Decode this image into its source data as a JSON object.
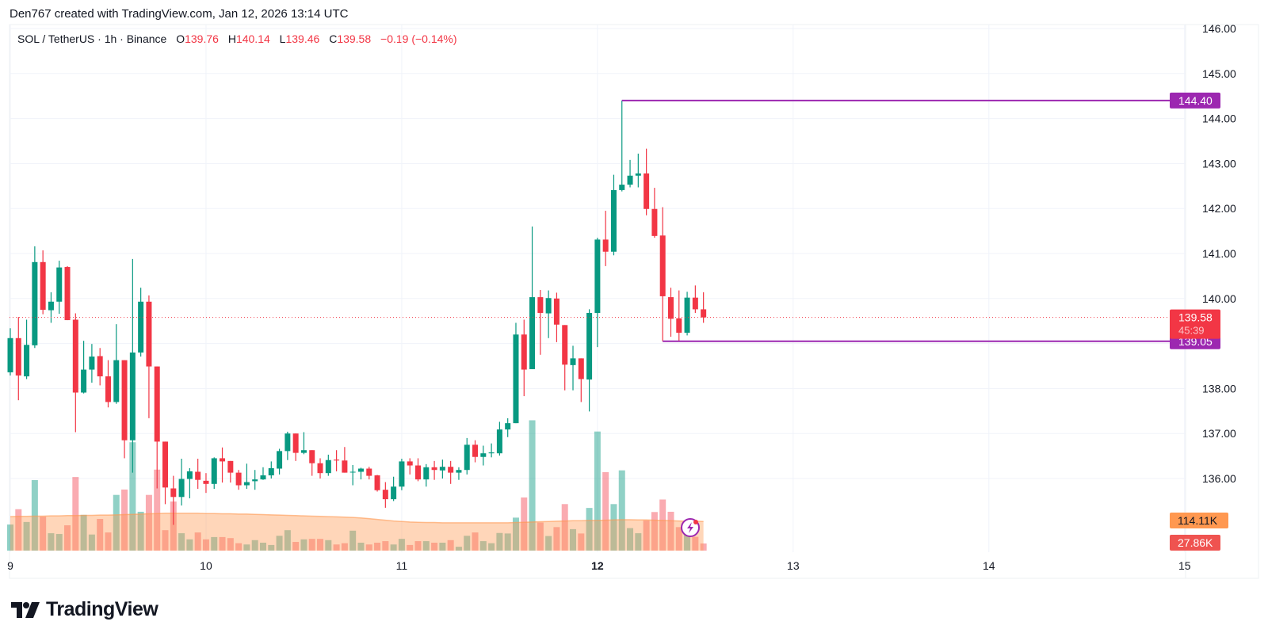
{
  "header": {
    "attribution": "Den767 created with TradingView.com, Jan 12, 2026 13:14 UTC"
  },
  "legend": {
    "symbol": "SOL / TetherUS · 1h · Binance",
    "o_label": "O",
    "o_value": "139.76",
    "h_label": "H",
    "h_value": "140.14",
    "l_label": "L",
    "l_value": "139.46",
    "c_label": "C",
    "c_value": "139.58",
    "change": "−0.19 (−0.14%)"
  },
  "logo": {
    "text": "TradingView"
  },
  "colors": {
    "up": "#089981",
    "down": "#f23645",
    "hline": "#9c27b0",
    "volume_ma": "#ff9850",
    "volume_label": "#ef5350",
    "grid": "#f0f3fa"
  },
  "chart_data": {
    "type": "candlestick",
    "interval": "1h",
    "ylim": [
      135,
      146
    ],
    "grid": true,
    "x_ticks": [
      "9",
      "10",
      "11",
      "12",
      "13",
      "14",
      "15"
    ],
    "x_tick_bold": "12",
    "y_ticks": [
      "146.00",
      "145.00",
      "144.00",
      "143.00",
      "142.00",
      "141.00",
      "140.00",
      "138.00",
      "137.00",
      "136.00"
    ],
    "candles": [
      [
        138.36,
        139.34,
        138.29,
        139.12
      ],
      [
        139.12,
        139.59,
        137.74,
        138.29
      ],
      [
        138.27,
        139.53,
        138.21,
        138.97
      ],
      [
        138.96,
        141.16,
        138.9,
        140.81
      ],
      [
        140.81,
        141.07,
        139.65,
        139.75
      ],
      [
        139.74,
        140.14,
        139.46,
        139.93
      ],
      [
        139.93,
        140.84,
        139.66,
        140.69
      ],
      [
        140.7,
        140.72,
        139.52,
        139.52
      ],
      [
        139.53,
        139.67,
        137.03,
        137.91
      ],
      [
        137.91,
        139.06,
        137.89,
        138.42
      ],
      [
        138.42,
        138.99,
        138.13,
        138.71
      ],
      [
        138.72,
        138.9,
        138.07,
        138.27
      ],
      [
        138.27,
        138.63,
        137.58,
        137.7
      ],
      [
        137.7,
        139.43,
        137.66,
        138.63
      ],
      [
        138.63,
        138.63,
        136.45,
        136.85
      ],
      [
        136.85,
        140.88,
        136.13,
        138.8
      ],
      [
        138.8,
        140.24,
        138.71,
        139.93
      ],
      [
        139.93,
        140.07,
        137.34,
        138.49
      ],
      [
        138.49,
        138.49,
        135.78,
        136.82
      ],
      [
        136.82,
        136.82,
        135.43,
        135.8
      ],
      [
        135.78,
        136.06,
        134.97,
        135.59
      ],
      [
        135.59,
        136.44,
        135.4,
        135.99
      ],
      [
        135.99,
        136.23,
        135.56,
        136.16
      ],
      [
        136.15,
        136.44,
        135.77,
        135.97
      ],
      [
        135.95,
        136.12,
        135.68,
        135.88
      ],
      [
        135.88,
        136.47,
        135.77,
        136.45
      ],
      [
        136.45,
        136.69,
        135.91,
        136.38
      ],
      [
        136.39,
        136.39,
        135.91,
        136.13
      ],
      [
        136.13,
        136.19,
        135.75,
        135.85
      ],
      [
        135.85,
        136.33,
        135.77,
        135.92
      ],
      [
        135.94,
        136.19,
        135.75,
        135.98
      ],
      [
        135.98,
        136.25,
        135.97,
        136.07
      ],
      [
        136.07,
        136.38,
        136.0,
        136.23
      ],
      [
        136.22,
        136.66,
        136.09,
        136.61
      ],
      [
        136.61,
        137.04,
        136.41,
        137.0
      ],
      [
        137.0,
        137.0,
        136.39,
        136.57
      ],
      [
        136.57,
        137.03,
        136.54,
        136.63
      ],
      [
        136.63,
        136.63,
        136.06,
        136.34
      ],
      [
        136.34,
        136.45,
        136.0,
        136.12
      ],
      [
        136.12,
        136.53,
        136.06,
        136.41
      ],
      [
        136.42,
        136.63,
        136.16,
        136.4
      ],
      [
        136.4,
        136.7,
        136.13,
        136.13
      ],
      [
        136.14,
        136.3,
        135.85,
        136.15
      ],
      [
        136.15,
        136.24,
        135.98,
        136.22
      ],
      [
        136.22,
        136.26,
        135.98,
        136.06
      ],
      [
        136.07,
        136.08,
        135.71,
        135.74
      ],
      [
        135.75,
        135.92,
        135.35,
        135.54
      ],
      [
        135.54,
        136.04,
        135.5,
        135.82
      ],
      [
        135.82,
        136.44,
        135.74,
        136.38
      ],
      [
        136.38,
        136.45,
        136.09,
        136.29
      ],
      [
        136.29,
        136.45,
        135.94,
        135.98
      ],
      [
        135.98,
        136.32,
        135.82,
        136.25
      ],
      [
        136.25,
        136.39,
        135.97,
        136.19
      ],
      [
        136.18,
        136.42,
        136.0,
        136.26
      ],
      [
        136.26,
        136.39,
        135.88,
        136.13
      ],
      [
        136.13,
        136.25,
        135.97,
        136.19
      ],
      [
        136.19,
        136.9,
        136.09,
        136.75
      ],
      [
        136.75,
        136.85,
        136.36,
        136.48
      ],
      [
        136.48,
        136.73,
        136.29,
        136.56
      ],
      [
        136.56,
        136.78,
        136.47,
        136.58
      ],
      [
        136.56,
        137.26,
        136.51,
        137.09
      ],
      [
        137.09,
        137.34,
        136.92,
        137.23
      ],
      [
        137.23,
        139.46,
        137.23,
        139.2
      ],
      [
        139.2,
        139.53,
        137.83,
        138.42
      ],
      [
        138.43,
        141.6,
        138.43,
        140.03
      ],
      [
        140.03,
        140.19,
        138.75,
        139.68
      ],
      [
        139.67,
        140.18,
        139.12,
        140.01
      ],
      [
        140.0,
        140.13,
        139.03,
        139.42
      ],
      [
        139.41,
        139.41,
        137.96,
        138.53
      ],
      [
        138.52,
        138.95,
        137.96,
        138.67
      ],
      [
        138.67,
        138.67,
        137.7,
        138.21
      ],
      [
        138.2,
        139.76,
        137.49,
        139.68
      ],
      [
        139.68,
        141.35,
        138.92,
        141.31
      ],
      [
        141.31,
        141.95,
        140.72,
        141.04
      ],
      [
        141.04,
        142.75,
        140.96,
        142.41
      ],
      [
        142.41,
        144.4,
        142.38,
        142.53
      ],
      [
        142.53,
        143.08,
        142.47,
        142.73
      ],
      [
        142.73,
        143.22,
        142.47,
        142.78
      ],
      [
        142.78,
        143.33,
        141.85,
        141.99
      ],
      [
        141.99,
        142.46,
        141.35,
        141.39
      ],
      [
        141.4,
        142.03,
        139.05,
        140.05
      ],
      [
        140.03,
        140.24,
        139.15,
        139.55
      ],
      [
        139.56,
        140.18,
        139.06,
        139.24
      ],
      [
        139.24,
        140.15,
        139.18,
        140.02
      ],
      [
        140.02,
        140.29,
        139.68,
        139.76
      ],
      [
        139.76,
        140.14,
        139.46,
        139.58
      ]
    ],
    "volume_k": [
      102,
      162,
      112,
      276,
      133,
      68,
      65,
      99,
      288,
      140,
      63,
      124,
      71,
      218,
      239,
      424,
      152,
      218,
      317,
      80,
      192,
      68,
      44,
      71,
      44,
      53,
      53,
      49,
      29,
      24,
      41,
      31,
      22,
      58,
      80,
      34,
      44,
      46,
      46,
      41,
      24,
      29,
      78,
      31,
      24,
      31,
      37,
      24,
      46,
      22,
      37,
      37,
      31,
      31,
      41,
      15,
      58,
      71,
      37,
      29,
      69,
      67,
      129,
      208,
      510,
      110,
      57,
      92,
      182,
      84,
      67,
      167,
      466,
      307,
      182,
      314,
      88,
      68,
      118,
      151,
      200,
      152,
      92,
      75,
      54,
      27.86
    ],
    "volume_ma_k": [
      133,
      134,
      134,
      135,
      135,
      136,
      136,
      137,
      137,
      138,
      138,
      139,
      139,
      140,
      141,
      142,
      143,
      144,
      145,
      146,
      146,
      146,
      146,
      146,
      145,
      145,
      144,
      144,
      143,
      143,
      142,
      141,
      140,
      139,
      138,
      137,
      136,
      135,
      134,
      133,
      132,
      131,
      130,
      128,
      125,
      122,
      119,
      116,
      114,
      112,
      111,
      110,
      110,
      109,
      109,
      109,
      109,
      109,
      109,
      109,
      109,
      109,
      110,
      111,
      112,
      113,
      114,
      115,
      116,
      117,
      117,
      118,
      118,
      119,
      120,
      121,
      121,
      120,
      120,
      119,
      118,
      117,
      116,
      115,
      115,
      114.11
    ],
    "horizontal_lines": [
      {
        "price": 144.4,
        "label": "144.40",
        "from_candle": 75
      },
      {
        "price": 139.05,
        "label": "139.05",
        "from_candle": 80
      }
    ],
    "last_price": {
      "price": 139.58,
      "label": "139.58",
      "countdown": "45:39"
    },
    "volume_ma_label": "114.11K",
    "volume_label": "27.86K"
  }
}
